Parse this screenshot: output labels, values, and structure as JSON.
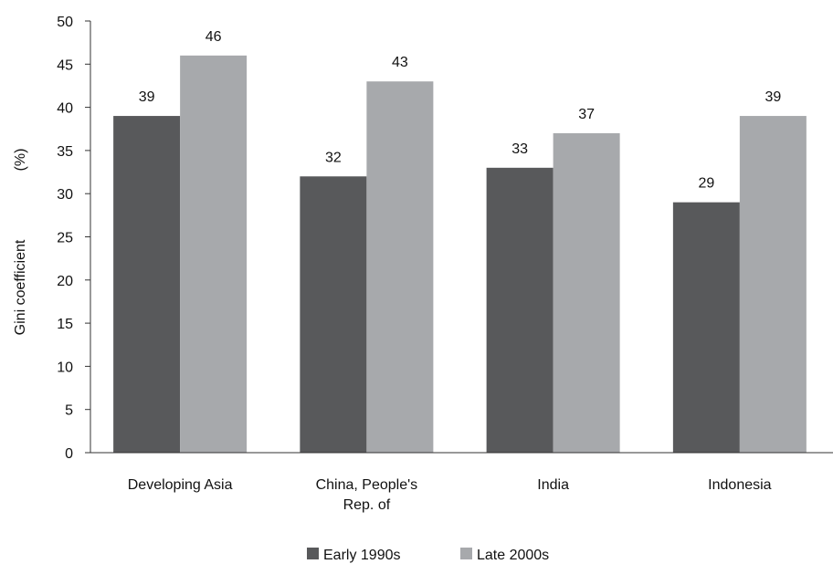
{
  "chart_data": {
    "type": "bar",
    "title": "",
    "xlabel": "",
    "ylabel": "Gini coefficient",
    "ylabel_unit": "(%)",
    "ylim": [
      0,
      50
    ],
    "yticks": [
      0,
      5,
      10,
      15,
      20,
      25,
      30,
      35,
      40,
      45,
      50
    ],
    "grid": false,
    "legend_position": "bottom",
    "categories": [
      [
        "Developing Asia"
      ],
      [
        "China, People's",
        "Rep. of"
      ],
      [
        "India"
      ],
      [
        "Indonesia"
      ]
    ],
    "series": [
      {
        "name": "Early 1990s",
        "color": "#58595b",
        "values": [
          39,
          32,
          33,
          29
        ]
      },
      {
        "name": "Late 2000s",
        "color": "#a7a9ac",
        "values": [
          46,
          43,
          37,
          39
        ]
      }
    ]
  }
}
